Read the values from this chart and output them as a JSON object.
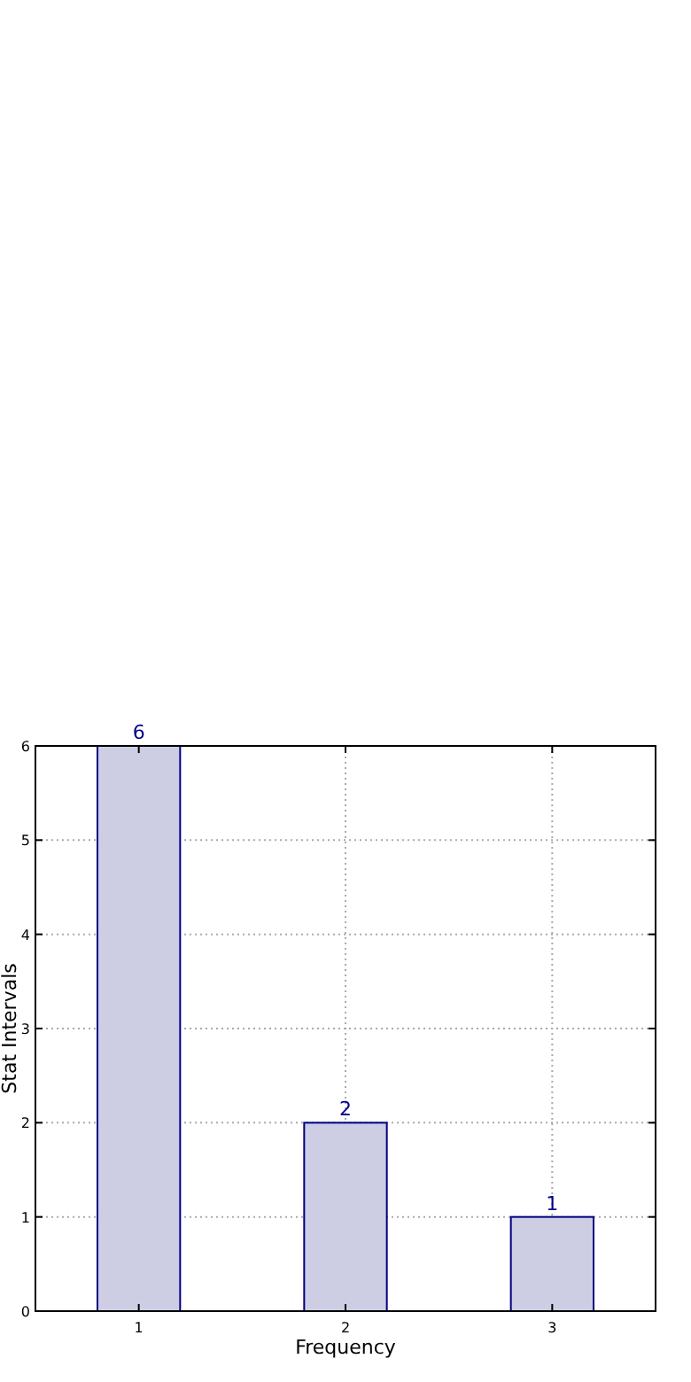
{
  "chart_data": {
    "type": "bar",
    "xlabel": "Frequency",
    "ylabel": "Stat Intervals",
    "x": [
      1,
      2,
      3
    ],
    "series": [
      {
        "color": "#cdcde4",
        "values": [
          6,
          2,
          1
        ]
      }
    ],
    "xlim": [
      0.5,
      3.5
    ],
    "xticks": [
      1,
      2,
      3
    ],
    "ylim": [
      0,
      6
    ],
    "yticks": [
      0,
      1,
      2,
      3,
      4,
      5,
      6
    ],
    "grid": true,
    "data_labels": true
  }
}
